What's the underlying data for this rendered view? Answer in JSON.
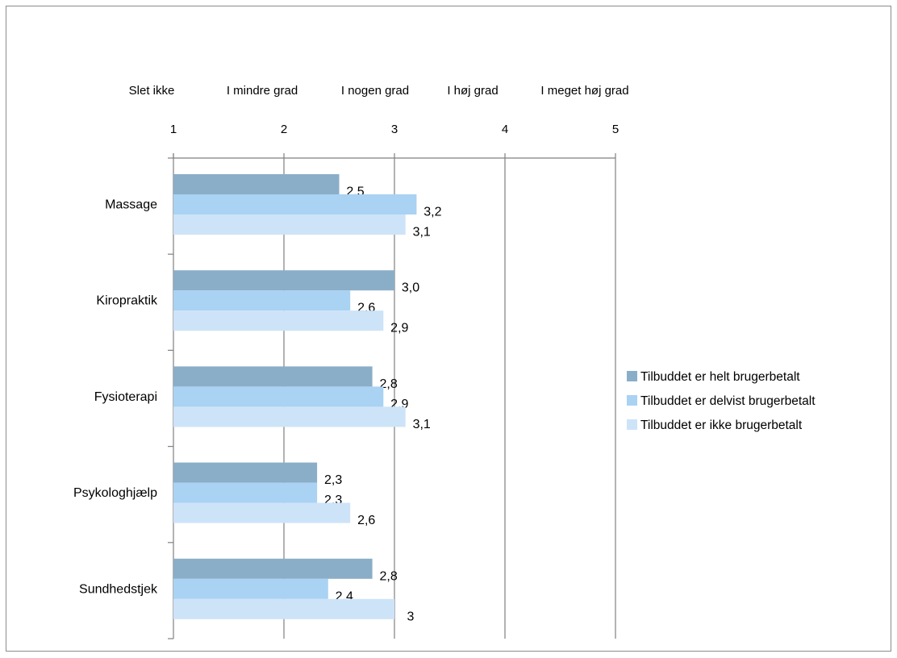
{
  "chart_data": {
    "type": "bar",
    "orientation": "horizontal",
    "xlim": [
      1,
      5
    ],
    "x_ticks": [
      1,
      2,
      3,
      4,
      5
    ],
    "scale_labels": [
      "Slet ikke",
      "I mindre grad",
      "I nogen grad",
      "I høj grad",
      "I meget høj grad"
    ],
    "categories": [
      "Massage",
      "Kiropraktik",
      "Fysioterapi",
      "Psykologhjælp",
      "Sundhedstjek"
    ],
    "series": [
      {
        "name": "Tilbuddet er helt brugerbetalt",
        "color": "#8aaec8",
        "values": [
          2.5,
          3.0,
          2.8,
          2.3,
          2.8
        ],
        "labels": [
          "2,5",
          "3,0",
          "2,8",
          "2,3",
          "2,8"
        ]
      },
      {
        "name": "Tilbuddet er delvist brugerbetalt",
        "color": "#a9d2f3",
        "values": [
          3.2,
          2.6,
          2.9,
          2.3,
          2.4
        ],
        "labels": [
          "3,2",
          "2,6",
          "2,9",
          "2,3",
          "2,4"
        ]
      },
      {
        "name": "Tilbuddet er ikke brugerbetalt",
        "color": "#cde3f8",
        "values": [
          3.1,
          2.9,
          3.1,
          2.6,
          3.0
        ],
        "labels": [
          "3,1",
          "2,9",
          "3,1",
          "2,6",
          "3"
        ]
      }
    ],
    "grid": true,
    "legend_position": "right"
  }
}
